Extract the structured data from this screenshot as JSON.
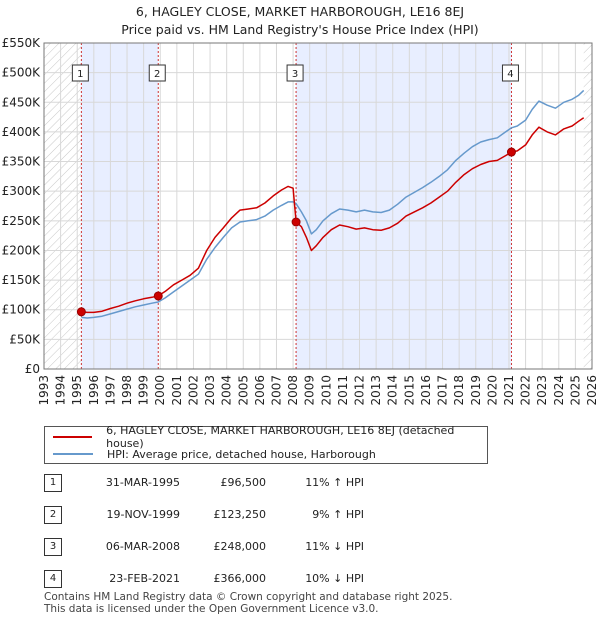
{
  "chart_data": {
    "type": "line",
    "title": "6, HAGLEY CLOSE, MARKET HARBOROUGH, LE16 8EJ",
    "subtitle": "Price paid vs. HM Land Registry's House Price Index (HPI)",
    "xlabel": "",
    "ylabel": "",
    "xlim": [
      1993,
      2026
    ],
    "ylim": [
      0,
      550000
    ],
    "x_ticks": [
      "1993",
      "1994",
      "1995",
      "1996",
      "1997",
      "1998",
      "1999",
      "2000",
      "2001",
      "2002",
      "2003",
      "2004",
      "2005",
      "2006",
      "2007",
      "2008",
      "2009",
      "2010",
      "2011",
      "2012",
      "2013",
      "2014",
      "2015",
      "2016",
      "2017",
      "2018",
      "2019",
      "2020",
      "2021",
      "2022",
      "2023",
      "2024",
      "2025",
      "2026"
    ],
    "y_ticks": [
      {
        "value": 0,
        "label": "£0"
      },
      {
        "value": 50000,
        "label": "£50K"
      },
      {
        "value": 100000,
        "label": "£100K"
      },
      {
        "value": 150000,
        "label": "£150K"
      },
      {
        "value": 200000,
        "label": "£200K"
      },
      {
        "value": 250000,
        "label": "£250K"
      },
      {
        "value": 300000,
        "label": "£300K"
      },
      {
        "value": 350000,
        "label": "£350K"
      },
      {
        "value": 400000,
        "label": "£400K"
      },
      {
        "value": 450000,
        "label": "£450K"
      },
      {
        "value": 500000,
        "label": "£500K"
      },
      {
        "value": 550000,
        "label": "£550K"
      }
    ],
    "series": [
      {
        "name": "6, HAGLEY CLOSE, MARKET HARBOROUGH, LE16 8EJ (detached house)",
        "color": "#cc0000",
        "points": [
          [
            1995.25,
            96500
          ],
          [
            1995.6,
            95500
          ],
          [
            1996,
            95500
          ],
          [
            1996.5,
            97500
          ],
          [
            1997,
            102000
          ],
          [
            1997.5,
            106000
          ],
          [
            1998,
            111000
          ],
          [
            1998.5,
            115000
          ],
          [
            1999,
            118500
          ],
          [
            1999.5,
            121000
          ],
          [
            1999.88,
            123250
          ],
          [
            2000.3,
            131000
          ],
          [
            2000.8,
            142000
          ],
          [
            2001.3,
            150000
          ],
          [
            2001.8,
            158000
          ],
          [
            2002.3,
            170000
          ],
          [
            2002.8,
            200000
          ],
          [
            2003.3,
            222000
          ],
          [
            2003.8,
            238000
          ],
          [
            2004.3,
            255000
          ],
          [
            2004.8,
            268000
          ],
          [
            2005.3,
            270000
          ],
          [
            2005.8,
            272000
          ],
          [
            2006.3,
            280000
          ],
          [
            2006.8,
            292000
          ],
          [
            2007.3,
            302000
          ],
          [
            2007.7,
            308000
          ],
          [
            2008.0,
            305000
          ],
          [
            2008.18,
            248000
          ],
          [
            2008.5,
            240000
          ],
          [
            2008.8,
            222000
          ],
          [
            2009.1,
            200000
          ],
          [
            2009.4,
            208000
          ],
          [
            2009.8,
            222000
          ],
          [
            2010.3,
            235000
          ],
          [
            2010.8,
            243000
          ],
          [
            2011.3,
            240000
          ],
          [
            2011.8,
            236000
          ],
          [
            2012.3,
            238000
          ],
          [
            2012.8,
            235000
          ],
          [
            2013.3,
            234000
          ],
          [
            2013.8,
            238000
          ],
          [
            2014.3,
            246000
          ],
          [
            2014.8,
            258000
          ],
          [
            2015.3,
            265000
          ],
          [
            2015.8,
            272000
          ],
          [
            2016.3,
            280000
          ],
          [
            2016.8,
            290000
          ],
          [
            2017.3,
            300000
          ],
          [
            2017.8,
            315000
          ],
          [
            2018.3,
            328000
          ],
          [
            2018.8,
            338000
          ],
          [
            2019.3,
            345000
          ],
          [
            2019.8,
            350000
          ],
          [
            2020.3,
            352000
          ],
          [
            2020.8,
            360000
          ],
          [
            2021.15,
            366000
          ],
          [
            2021.5,
            368000
          ],
          [
            2022.0,
            378000
          ],
          [
            2022.4,
            395000
          ],
          [
            2022.8,
            408000
          ],
          [
            2023.3,
            400000
          ],
          [
            2023.8,
            395000
          ],
          [
            2024.3,
            405000
          ],
          [
            2024.8,
            410000
          ],
          [
            2025.2,
            418000
          ],
          [
            2025.5,
            424000
          ]
        ]
      },
      {
        "name": "HPI: Average price, detached house, Harborough",
        "color": "#6699cc",
        "points": [
          [
            1995.25,
            87000
          ],
          [
            1995.6,
            86000
          ],
          [
            1996,
            87000
          ],
          [
            1996.5,
            89000
          ],
          [
            1997,
            93000
          ],
          [
            1997.5,
            97000
          ],
          [
            1998,
            101000
          ],
          [
            1998.5,
            105000
          ],
          [
            1999,
            108000
          ],
          [
            1999.5,
            111000
          ],
          [
            1999.88,
            113000
          ],
          [
            2000.3,
            120000
          ],
          [
            2000.8,
            130000
          ],
          [
            2001.3,
            140000
          ],
          [
            2001.8,
            150000
          ],
          [
            2002.3,
            160000
          ],
          [
            2002.8,
            185000
          ],
          [
            2003.3,
            205000
          ],
          [
            2003.8,
            222000
          ],
          [
            2004.3,
            238000
          ],
          [
            2004.8,
            248000
          ],
          [
            2005.3,
            250000
          ],
          [
            2005.8,
            252000
          ],
          [
            2006.3,
            258000
          ],
          [
            2006.8,
            268000
          ],
          [
            2007.3,
            276000
          ],
          [
            2007.7,
            282000
          ],
          [
            2008.0,
            282000
          ],
          [
            2008.18,
            279000
          ],
          [
            2008.5,
            265000
          ],
          [
            2008.8,
            250000
          ],
          [
            2009.1,
            228000
          ],
          [
            2009.4,
            235000
          ],
          [
            2009.8,
            250000
          ],
          [
            2010.3,
            262000
          ],
          [
            2010.8,
            270000
          ],
          [
            2011.3,
            268000
          ],
          [
            2011.8,
            265000
          ],
          [
            2012.3,
            268000
          ],
          [
            2012.8,
            265000
          ],
          [
            2013.3,
            264000
          ],
          [
            2013.8,
            268000
          ],
          [
            2014.3,
            278000
          ],
          [
            2014.8,
            290000
          ],
          [
            2015.3,
            298000
          ],
          [
            2015.8,
            306000
          ],
          [
            2016.3,
            315000
          ],
          [
            2016.8,
            325000
          ],
          [
            2017.3,
            336000
          ],
          [
            2017.8,
            352000
          ],
          [
            2018.3,
            364000
          ],
          [
            2018.8,
            375000
          ],
          [
            2019.3,
            383000
          ],
          [
            2019.8,
            387000
          ],
          [
            2020.3,
            390000
          ],
          [
            2020.8,
            400000
          ],
          [
            2021.15,
            407000
          ],
          [
            2021.5,
            410000
          ],
          [
            2022.0,
            420000
          ],
          [
            2022.4,
            438000
          ],
          [
            2022.8,
            452000
          ],
          [
            2023.3,
            445000
          ],
          [
            2023.8,
            440000
          ],
          [
            2024.3,
            450000
          ],
          [
            2024.8,
            455000
          ],
          [
            2025.2,
            462000
          ],
          [
            2025.5,
            470000
          ]
        ]
      }
    ],
    "sales": [
      {
        "num": "1",
        "x": 1995.25,
        "price": 96500,
        "date": "31-MAR-1995",
        "price_label": "£96,500",
        "hpi": "11% ↑ HPI"
      },
      {
        "num": "2",
        "x": 1999.88,
        "price": 123250,
        "date": "19-NOV-1999",
        "price_label": "£123,250",
        "hpi": "9% ↑ HPI"
      },
      {
        "num": "3",
        "x": 2008.18,
        "price": 248000,
        "date": "06-MAR-2008",
        "price_label": "£248,000",
        "hpi": "11% ↓ HPI"
      },
      {
        "num": "4",
        "x": 2021.15,
        "price": 366000,
        "date": "23-FEB-2021",
        "price_label": "£366,000",
        "hpi": "10% ↓ HPI"
      }
    ],
    "shaded_periods": [
      [
        1995.25,
        1999.88
      ],
      [
        2008.18,
        2021.15
      ]
    ],
    "hatched_regions": [
      [
        1993,
        1995.25
      ],
      [
        2025.5,
        2026
      ]
    ],
    "grid": true
  },
  "legend": {
    "property_label": "6, HAGLEY CLOSE, MARKET HARBOROUGH, LE16 8EJ (detached house)",
    "hpi_label": "HPI: Average price, detached house, Harborough"
  },
  "footer": {
    "line1": "Contains HM Land Registry data © Crown copyright and database right 2025.",
    "line2": "This data is licensed under the Open Government Licence v3.0."
  },
  "colors": {
    "property": "#cc0000",
    "hpi": "#6699cc",
    "shade": "#e8eeff",
    "marker_line": "#cc3333"
  }
}
